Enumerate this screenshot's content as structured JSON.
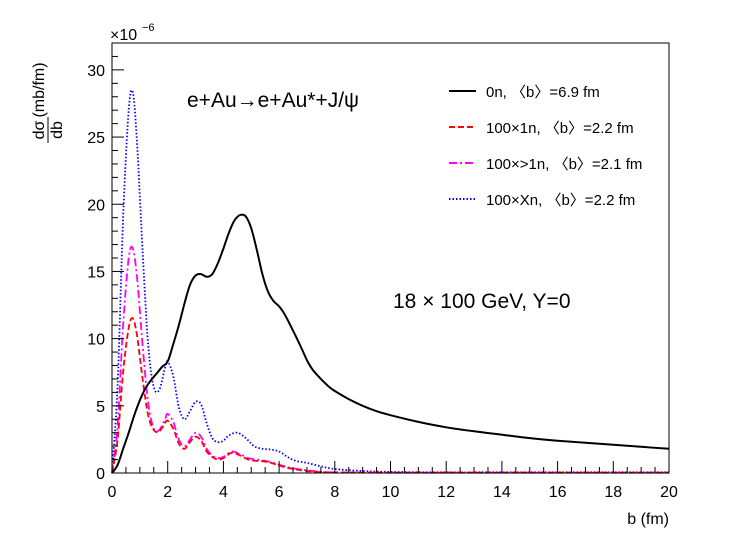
{
  "chart_data": {
    "type": "line",
    "title": "e+Au→e+Au*+J/ψ",
    "energy_label": "18 × 100 GeV, Y=0",
    "xlabel": "b (fm)",
    "ylabel_numerator": "dσ",
    "ylabel_denominator": "db",
    "ylabel_units": "(mb/fm)",
    "y_multiplier": "×10",
    "y_multiplier_exp": "−6",
    "xlim": [
      0,
      20
    ],
    "ylim": [
      0,
      32
    ],
    "x_ticks": [
      0,
      2,
      4,
      6,
      8,
      10,
      12,
      14,
      16,
      18,
      20
    ],
    "y_ticks": [
      0,
      5,
      10,
      15,
      20,
      25,
      30
    ],
    "legend_position": "top-right",
    "series": [
      {
        "name": "0n, 〈b〉=6.9 fm",
        "color": "#000000",
        "style": "solid",
        "x": [
          0,
          0.2,
          0.4,
          0.6,
          0.8,
          1.0,
          1.2,
          1.4,
          1.6,
          1.8,
          2.0,
          2.2,
          2.4,
          2.6,
          2.8,
          3.0,
          3.2,
          3.4,
          3.6,
          3.8,
          4.0,
          4.2,
          4.4,
          4.6,
          4.8,
          5.0,
          5.2,
          5.4,
          5.6,
          5.8,
          6.0,
          6.2,
          6.5,
          6.8,
          7.0,
          7.2,
          7.5,
          7.8,
          8.0,
          8.5,
          9.0,
          9.5,
          10.0,
          11.0,
          12.0,
          13.0,
          14.0,
          15.0,
          16.0,
          17.0,
          18.0,
          19.0,
          20.0
        ],
        "values": [
          0,
          0.6,
          1.8,
          3.0,
          4.3,
          5.4,
          6.3,
          6.9,
          7.4,
          7.9,
          8.3,
          9.6,
          11.0,
          12.6,
          14.0,
          14.7,
          14.8,
          14.6,
          14.8,
          15.6,
          16.7,
          17.9,
          18.8,
          19.2,
          19.1,
          18.2,
          16.6,
          14.8,
          13.5,
          12.8,
          12.4,
          11.8,
          10.6,
          9.3,
          8.4,
          7.7,
          7.0,
          6.4,
          6.1,
          5.5,
          5.0,
          4.6,
          4.3,
          3.8,
          3.4,
          3.1,
          2.85,
          2.6,
          2.4,
          2.25,
          2.1,
          1.95,
          1.8
        ]
      },
      {
        "name": "100×1n, 〈b〉=2.2 fm",
        "color": "#ff0000",
        "style": "dashed",
        "x": [
          0,
          0.2,
          0.4,
          0.6,
          0.75,
          0.9,
          1.1,
          1.3,
          1.5,
          1.7,
          1.9,
          2.0,
          2.2,
          2.4,
          2.6,
          2.8,
          3.0,
          3.2,
          3.4,
          3.6,
          3.8,
          4.0,
          4.3,
          4.6,
          4.9,
          5.2,
          5.5,
          5.8,
          6.1,
          6.5,
          7.0,
          7.5,
          8.0,
          9.0,
          10.0,
          12.0,
          14.0,
          16.0,
          18.0,
          20.0
        ],
        "values": [
          0,
          2.5,
          7.5,
          10.8,
          11.5,
          10.2,
          7.0,
          4.3,
          3.2,
          3.1,
          3.7,
          3.9,
          3.3,
          2.2,
          1.8,
          2.3,
          2.7,
          2.4,
          1.6,
          1.2,
          1.0,
          1.1,
          1.5,
          1.3,
          1.0,
          0.9,
          0.85,
          0.7,
          0.5,
          0.3,
          0.15,
          0.06,
          0.04,
          0.03,
          0.02,
          0.02,
          0.02,
          0.02,
          0.02,
          0.02
        ]
      },
      {
        "name": "100×>1n, 〈b〉=2.1 fm",
        "color": "#ff00ff",
        "style": "dashdot",
        "x": [
          0,
          0.2,
          0.4,
          0.6,
          0.75,
          0.9,
          1.1,
          1.3,
          1.5,
          1.7,
          1.9,
          2.0,
          2.2,
          2.4,
          2.6,
          2.8,
          3.0,
          3.2,
          3.4,
          3.6,
          3.8,
          4.0,
          4.3,
          4.6,
          4.9,
          5.2,
          5.5,
          5.8,
          6.1,
          6.5,
          7.0,
          7.5,
          8.0,
          9.0,
          10.0,
          12.0,
          14.0,
          16.0,
          18.0,
          20.0
        ],
        "values": [
          0,
          3.5,
          11.0,
          16.0,
          16.7,
          14.5,
          9.5,
          5.2,
          3.3,
          3.2,
          4.0,
          4.4,
          3.8,
          2.5,
          2.0,
          2.5,
          3.0,
          2.7,
          1.8,
          1.3,
          1.1,
          1.2,
          1.6,
          1.4,
          1.1,
          1.0,
          0.9,
          0.75,
          0.55,
          0.35,
          0.2,
          0.08,
          0.05,
          0.04,
          0.03,
          0.03,
          0.03,
          0.03,
          0.03,
          0.03
        ]
      },
      {
        "name": "100×Xn, 〈b〉=2.2 fm",
        "color": "#0000ff",
        "style": "dotted",
        "x": [
          0,
          0.2,
          0.4,
          0.6,
          0.75,
          0.9,
          1.1,
          1.3,
          1.5,
          1.7,
          1.9,
          2.0,
          2.2,
          2.4,
          2.6,
          2.8,
          3.0,
          3.2,
          3.4,
          3.6,
          3.8,
          4.0,
          4.2,
          4.5,
          4.8,
          5.1,
          5.4,
          5.7,
          6.0,
          6.3,
          6.6,
          7.0,
          7.5,
          8.0,
          9.0,
          10.0,
          12.0,
          14.0,
          16.0,
          18.0,
          20.0
        ],
        "values": [
          0,
          6.5,
          19.0,
          27.0,
          28.3,
          24.5,
          16.5,
          9.5,
          6.4,
          6.2,
          7.8,
          8.3,
          7.2,
          4.9,
          4.0,
          4.6,
          5.3,
          5.1,
          3.7,
          2.6,
          2.3,
          2.4,
          2.8,
          3.0,
          2.6,
          2.0,
          1.8,
          1.75,
          1.6,
          1.2,
          0.9,
          0.75,
          0.5,
          0.3,
          0.15,
          0.08,
          0.05,
          0.05,
          0.05,
          0.05,
          0.05
        ]
      }
    ]
  }
}
